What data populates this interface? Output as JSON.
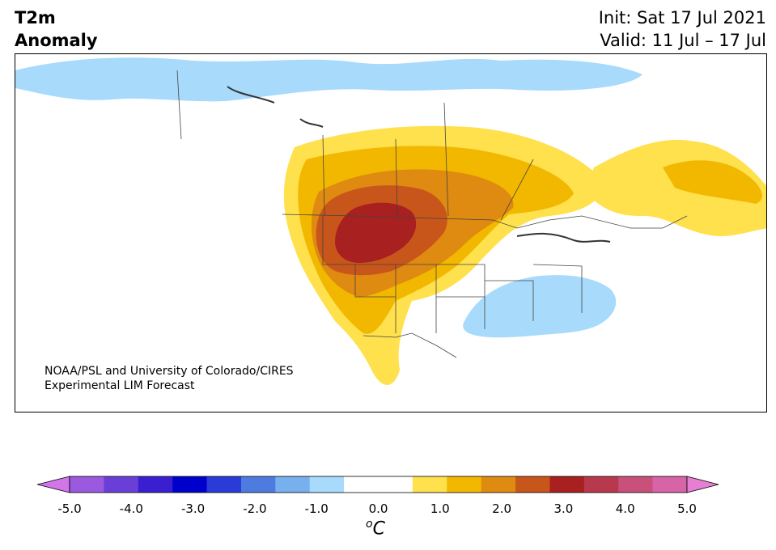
{
  "title": {
    "line1": "T2m",
    "line2": "Anomaly"
  },
  "header_right": {
    "init": "Init: Sat 17 Jul 2021",
    "valid": "Valid: 11 Jul – 17 Jul"
  },
  "credit": {
    "line1": "NOAA/PSL and University of Colorado/CIRES",
    "line2": "Experimental LIM Forecast"
  },
  "colorbar": {
    "ticks": [
      "-5.0",
      "-4.0",
      "-3.0",
      "-2.0",
      "-1.0",
      "0.0",
      "1.0",
      "2.0",
      "3.0",
      "4.0",
      "5.0"
    ],
    "colors": [
      "#d175e8",
      "#9b59e0",
      "#6a3fd8",
      "#3a1fd0",
      "#0000cc",
      "#2a3bd8",
      "#4d7be0",
      "#78b0ee",
      "#a8dafc",
      "#ffffff",
      "#ffffff",
      "#ffe04d",
      "#f2b800",
      "#df8a10",
      "#c8561a",
      "#a82020",
      "#b8384e",
      "#c8507a",
      "#d864a8",
      "#e67fd2"
    ],
    "unit_symbol": "o",
    "unit_letter": "C"
  },
  "map": {
    "region": "North America",
    "palette": {
      "light_blue": "#a8dafc",
      "yellow": "#ffe04d",
      "gold": "#f2b800",
      "orange": "#df8a10",
      "dark_orange": "#c8561a",
      "red": "#a82020",
      "border": "#444444",
      "lake": "#333333"
    }
  }
}
